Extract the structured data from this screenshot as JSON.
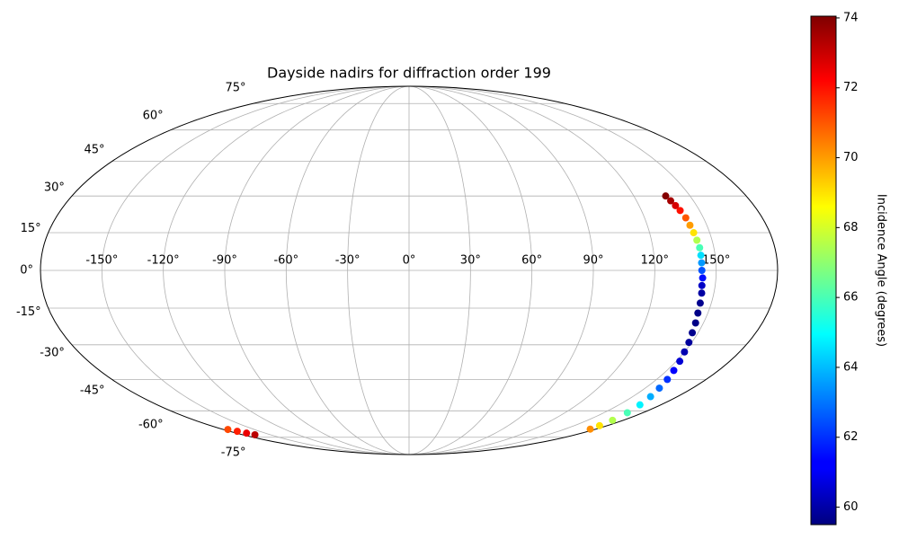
{
  "chart_data": {
    "type": "scatter",
    "projection": "mollweide",
    "title": "Dayside nadirs for diffraction order 199",
    "colorbar_label": "Incidence Angle (degrees)",
    "colormap": "jet",
    "grid": true,
    "x": [
      137,
      138,
      139,
      140,
      141,
      141.5,
      142,
      142.5,
      143,
      143,
      143,
      143,
      143.5,
      143.5,
      144,
      144.5,
      145,
      146,
      147,
      148.5,
      150,
      152,
      154,
      156.5,
      159,
      162,
      165,
      168,
      171,
      173,
      174.5,
      -175.6,
      -172.5,
      -169.5,
      -166.8
    ],
    "y": [
      30,
      28,
      26,
      24,
      21,
      18,
      15,
      12,
      9,
      6,
      3,
      0,
      -3,
      -6,
      -9,
      -13,
      -17,
      -21,
      -25,
      -29,
      -33,
      -37,
      -41,
      -45,
      -49,
      -53,
      -57,
      -61,
      -65,
      -68,
      -70,
      -70.2,
      -71.3,
      -72.4,
      -73.4
    ],
    "values": [
      74,
      73.5,
      72.8,
      72,
      71,
      70,
      69,
      67.5,
      66,
      64.5,
      63.5,
      62.5,
      61.5,
      60.5,
      60,
      59.7,
      59.6,
      59.6,
      59.7,
      59.9,
      60.2,
      60.7,
      61.3,
      62,
      62.8,
      63.8,
      64.8,
      66,
      67.5,
      69,
      70.2,
      71.2,
      71.8,
      72.5,
      73.2
    ],
    "xlim": [
      -180,
      180
    ],
    "ylim": [
      -90,
      90
    ],
    "xticks": [
      {
        "value": -150,
        "label": "-150°"
      },
      {
        "value": -120,
        "label": "-120°"
      },
      {
        "value": -90,
        "label": "-90°"
      },
      {
        "value": -60,
        "label": "-60°"
      },
      {
        "value": -30,
        "label": "-30°"
      },
      {
        "value": 0,
        "label": "0°"
      },
      {
        "value": 30,
        "label": "30°"
      },
      {
        "value": 60,
        "label": "60°"
      },
      {
        "value": 90,
        "label": "90°"
      },
      {
        "value": 120,
        "label": "120°"
      },
      {
        "value": 150,
        "label": "150°"
      }
    ],
    "yticks": [
      {
        "value": -75,
        "label": "-75°"
      },
      {
        "value": -60,
        "label": "-60°"
      },
      {
        "value": -45,
        "label": "-45°"
      },
      {
        "value": -30,
        "label": "-30°"
      },
      {
        "value": -15,
        "label": "-15°"
      },
      {
        "value": 0,
        "label": "0°"
      },
      {
        "value": 15,
        "label": "15°"
      },
      {
        "value": 30,
        "label": "30°"
      },
      {
        "value": 45,
        "label": "45°"
      },
      {
        "value": 60,
        "label": "60°"
      },
      {
        "value": 75,
        "label": "75°"
      }
    ],
    "clim": [
      59.5,
      74.05
    ],
    "cticks": [
      60,
      62,
      64,
      66,
      68,
      70,
      72,
      74
    ]
  }
}
